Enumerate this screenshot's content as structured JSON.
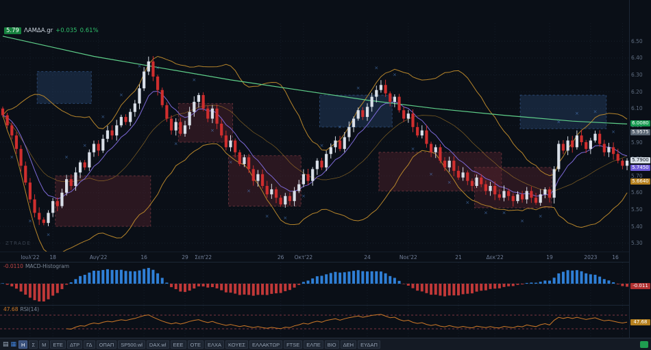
{
  "app": {
    "watermark": "ZTRADE"
  },
  "symbol_header": {
    "price": "5.79",
    "name": "ΛΑΜΔΑ.gr",
    "change": "+0.035",
    "change_pct": "0.61%"
  },
  "price_axis": {
    "ticks": [
      "6.50",
      "6.40",
      "6.30",
      "6.20",
      "6.10",
      "6.00",
      "5.90",
      "5.80",
      "5.70",
      "5.60",
      "5.50",
      "5.40",
      "5.30"
    ],
    "tags": [
      {
        "label": "6.0080",
        "price": 6.008,
        "bg": "#169a50",
        "fg": "#ffffff"
      },
      {
        "label": "5.9575",
        "price": 5.9575,
        "bg": "#5a6673",
        "fg": "#ffffff"
      },
      {
        "label": "5.7900",
        "price": 5.79,
        "bg": "#d7dee6",
        "fg": "#111722"
      },
      {
        "label": "5.7450",
        "price": 5.745,
        "bg": "#6f5bd6",
        "fg": "#ffffff"
      },
      {
        "label": "5.6640",
        "price": 5.664,
        "bg": "#b5801f",
        "fg": "#ffffff"
      }
    ]
  },
  "macd_panel": {
    "value": "-0.0110",
    "name": "MACD-Histogram",
    "tag": {
      "label": "-0.011",
      "bg": "#b03030",
      "fg": "#ffffff"
    }
  },
  "rsi_panel": {
    "value": "47.68",
    "name": "RSI(14)",
    "levels": [
      70,
      30
    ],
    "tag": {
      "label": "47.68",
      "bg": "#b5801f",
      "fg": "#ffffff"
    }
  },
  "toolbar": {
    "timeframes": [
      {
        "label": "Η",
        "active": true
      },
      {
        "label": "Σ",
        "active": false
      },
      {
        "label": "Μ",
        "active": false
      }
    ],
    "tickers": [
      "ΕΤΕ",
      "ΔΤΡ",
      "ΓΔ",
      "ΟΠΑΠ",
      "SP500.wl",
      "DAX.wl",
      "ΕΕΕ",
      "ΟΤΕ",
      "ΕΛΧΑ",
      "ΚΟΥΕΣ",
      "ΕΛΛΑΚΤΩΡ",
      "FTSE",
      "ΕΛΠΕ",
      "ΒΙΟ",
      "ΔΕΗ",
      "ΕΥΔΑΠ"
    ]
  },
  "chart_data": {
    "type": "candlestick",
    "title": "ΛΑΜΔΑ.gr daily candles with long moving average, band envelope, supply/demand zones, MACD histogram and RSI(14)",
    "ylim": [
      5.25,
      6.55
    ],
    "candles": {
      "first_open": 6.1,
      "closes": [
        6.06,
        6.0,
        5.94,
        5.86,
        5.76,
        5.66,
        5.56,
        5.48,
        5.44,
        5.42,
        5.48,
        5.55,
        5.52,
        5.6,
        5.68,
        5.64,
        5.72,
        5.78,
        5.75,
        5.84,
        5.89,
        5.85,
        5.92,
        5.97,
        5.94,
        6.0,
        6.05,
        6.02,
        6.08,
        6.13,
        6.22,
        6.32,
        6.38,
        6.29,
        6.21,
        6.12,
        6.04,
        5.97,
        6.02,
        5.95,
        6.0,
        6.08,
        6.14,
        6.18,
        6.1,
        6.04,
        6.1,
        6.01,
        5.94,
        5.87,
        5.91,
        5.84,
        5.77,
        5.81,
        5.74,
        5.67,
        5.71,
        5.64,
        5.59,
        5.62,
        5.57,
        5.53,
        5.58,
        5.55,
        5.61,
        5.65,
        5.71,
        5.67,
        5.74,
        5.79,
        5.75,
        5.83,
        5.87,
        5.91,
        5.86,
        5.93,
        5.99,
        6.04,
        6.09,
        6.05,
        6.11,
        6.17,
        6.21,
        6.24,
        6.19,
        6.14,
        6.17,
        6.09,
        6.04,
        6.07,
        5.99,
        5.94,
        5.97,
        5.89,
        5.84,
        5.87,
        5.79,
        5.75,
        5.79,
        5.73,
        5.69,
        5.72,
        5.67,
        5.64,
        5.69,
        5.65,
        5.61,
        5.64,
        5.59,
        5.57,
        5.61,
        5.58,
        5.55,
        5.59,
        5.56,
        5.61,
        5.57,
        5.54,
        5.59,
        5.62,
        5.57,
        5.74,
        5.89,
        5.85,
        5.91,
        5.87,
        5.94,
        5.9,
        5.86,
        5.91,
        5.95,
        5.89,
        5.84,
        5.87,
        5.83,
        5.79,
        5.76,
        5.79
      ]
    },
    "time_labels": [
      {
        "text": "Ιουλ'22",
        "i": 6
      },
      {
        "text": "18",
        "i": 11
      },
      {
        "text": "Αυγ'22",
        "i": 21
      },
      {
        "text": "16",
        "i": 31
      },
      {
        "text": "29",
        "i": 40
      },
      {
        "text": "Σεπ'22",
        "i": 44
      },
      {
        "text": "26",
        "i": 61
      },
      {
        "text": "Οκτ'22",
        "i": 66
      },
      {
        "text": "24",
        "i": 80
      },
      {
        "text": "Νοε'22",
        "i": 89
      },
      {
        "text": "21",
        "i": 100
      },
      {
        "text": "Δεκ'22",
        "i": 108
      },
      {
        "text": "19",
        "i": 120
      },
      {
        "text": "2023",
        "i": 129
      },
      {
        "text": "16",
        "i": 136
      }
    ],
    "overlays": {
      "long_ma_anchors": [
        [
          0,
          6.53
        ],
        [
          10,
          6.47
        ],
        [
          20,
          6.41
        ],
        [
          35,
          6.34
        ],
        [
          50,
          6.27
        ],
        [
          65,
          6.21
        ],
        [
          80,
          6.15
        ],
        [
          95,
          6.1
        ],
        [
          110,
          6.06
        ],
        [
          125,
          6.025
        ],
        [
          137,
          6.008
        ]
      ],
      "band_period": 20,
      "short_ma_period": 8
    },
    "zones": [
      {
        "type": "supply",
        "i0": 8,
        "i1": 19,
        "p0": 6.13,
        "p1": 6.32
      },
      {
        "type": "demand",
        "i0": 12,
        "i1": 32,
        "p0": 5.4,
        "p1": 5.7
      },
      {
        "type": "demand",
        "i0": 39,
        "i1": 50,
        "p0": 5.9,
        "p1": 6.13
      },
      {
        "type": "demand",
        "i0": 50,
        "i1": 65,
        "p0": 5.52,
        "p1": 5.82
      },
      {
        "type": "supply",
        "i0": 70,
        "i1": 85,
        "p0": 5.99,
        "p1": 6.18
      },
      {
        "type": "demand",
        "i0": 83,
        "i1": 109,
        "p0": 5.61,
        "p1": 5.84
      },
      {
        "type": "demand",
        "i0": 104,
        "i1": 120,
        "p0": 5.51,
        "p1": 5.75
      },
      {
        "type": "supply",
        "i0": 114,
        "i1": 132,
        "p0": 5.98,
        "p1": 6.18
      }
    ],
    "colors": {
      "up_candle": "#d9dfe8",
      "down_candle": "#cf2e2e",
      "ma_long": "#5fd08a",
      "band": "#b8862b",
      "ma_short": "#7e6ad8",
      "macd_pos": "#2f7fd6",
      "macd_neg": "#c13838",
      "rsi_line": "#cf7a28",
      "supply_zone": "#2b4a74",
      "demand_zone": "#5e2630",
      "mark": "#5a96e6"
    }
  }
}
